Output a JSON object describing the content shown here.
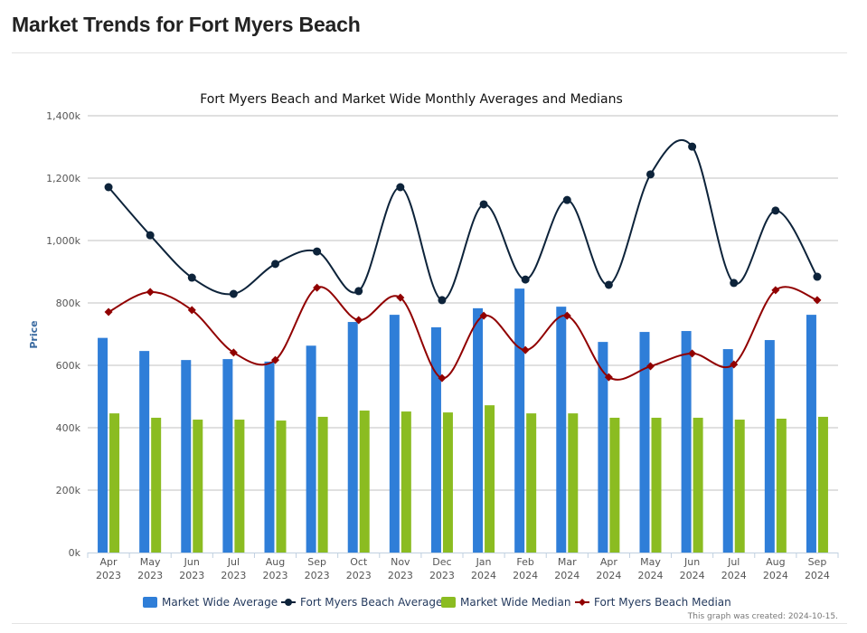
{
  "page": {
    "title": "Market Trends for Fort Myers Beach"
  },
  "chart_data": {
    "type": "bar",
    "title": "Fort Myers Beach and Market Wide Monthly Averages and Medians",
    "xlabel": "",
    "ylabel": "Price",
    "ylim": [
      0,
      1400
    ],
    "yticks": [
      0,
      200,
      400,
      600,
      800,
      1000,
      1200,
      1400
    ],
    "ytick_labels": [
      "0k",
      "200k",
      "400k",
      "600k",
      "800k",
      "1,000k",
      "1,200k",
      "1,400k"
    ],
    "grid": true,
    "legend_position": "bottom-center",
    "categories": [
      [
        "Apr",
        "2023"
      ],
      [
        "May",
        "2023"
      ],
      [
        "Jun",
        "2023"
      ],
      [
        "Jul",
        "2023"
      ],
      [
        "Aug",
        "2023"
      ],
      [
        "Sep",
        "2023"
      ],
      [
        "Oct",
        "2023"
      ],
      [
        "Nov",
        "2023"
      ],
      [
        "Dec",
        "2023"
      ],
      [
        "Jan",
        "2024"
      ],
      [
        "Feb",
        "2024"
      ],
      [
        "Mar",
        "2024"
      ],
      [
        "Apr",
        "2024"
      ],
      [
        "May",
        "2024"
      ],
      [
        "Jun",
        "2024"
      ],
      [
        "Jul",
        "2024"
      ],
      [
        "Aug",
        "2024"
      ],
      [
        "Sep",
        "2024"
      ]
    ],
    "series": [
      {
        "name": "Market Wide Average",
        "kind": "bar",
        "color": "#2f7ed8",
        "values": [
          688,
          646,
          617,
          620,
          612,
          663,
          739,
          762,
          722,
          783,
          846,
          788,
          675,
          707,
          710,
          652,
          681,
          762
        ]
      },
      {
        "name": "Fort Myers Beach Average",
        "kind": "line",
        "marker": "circle",
        "color": "#0d233a",
        "values": [
          1171,
          1017,
          881,
          829,
          925,
          965,
          838,
          1171,
          809,
          1116,
          875,
          1130,
          858,
          1212,
          1301,
          864,
          1096,
          884
        ]
      },
      {
        "name": "Market Wide Median",
        "kind": "bar",
        "color": "#8bbc21",
        "values": [
          446,
          432,
          426,
          426,
          423,
          435,
          455,
          452,
          449,
          472,
          446,
          446,
          432,
          432,
          432,
          426,
          429,
          435
        ]
      },
      {
        "name": "Fort Myers Beach Median",
        "kind": "line",
        "marker": "diamond",
        "color": "#910000",
        "values": [
          771,
          835,
          777,
          641,
          617,
          849,
          745,
          817,
          559,
          759,
          649,
          759,
          562,
          597,
          638,
          603,
          841,
          809
        ]
      }
    ],
    "units": "thousands USD",
    "credit": "This graph was created: 2024-10-15."
  }
}
